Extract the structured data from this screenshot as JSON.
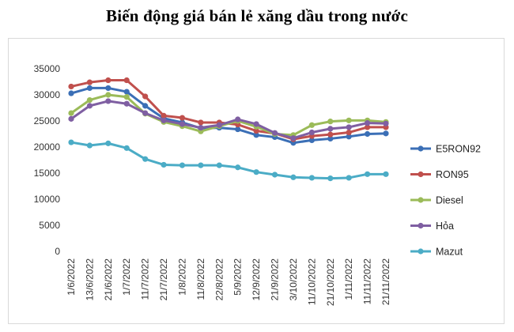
{
  "chart_data": {
    "type": "line",
    "title": "Biến động giá bán lẻ xăng dầu trong nước",
    "xlabel": "",
    "ylabel": "",
    "ylim": [
      0,
      35000
    ],
    "yticks": [
      0,
      5000,
      10000,
      15000,
      20000,
      25000,
      30000,
      35000
    ],
    "grid": false,
    "legend": "right",
    "categories": [
      "1/6/2022",
      "13/6/2022",
      "21/6/2022",
      "1/7/2022",
      "11/7/2022",
      "21/7/2022",
      "1/8/2022",
      "11/8/2022",
      "22/8/2022",
      "5/9/2022",
      "12/9/2022",
      "21/9/2022",
      "3/10/2022",
      "11/10/2022",
      "21/10/2022",
      "1/11/2022",
      "11/11/2022",
      "21/11/2022"
    ],
    "series": [
      {
        "name": "E5RON92",
        "color": "#3b6fb6",
        "values": [
          30300,
          31300,
          31300,
          30600,
          27900,
          25500,
          24700,
          23600,
          23700,
          23400,
          22300,
          21900,
          20800,
          21300,
          21600,
          22000,
          22500,
          22600
        ]
      },
      {
        "name": "RON95",
        "color": "#c0504d",
        "values": [
          31600,
          32400,
          32800,
          32800,
          29700,
          26000,
          25600,
          24700,
          24700,
          24300,
          23100,
          22600,
          21500,
          22100,
          22400,
          22800,
          23800,
          23800
        ]
      },
      {
        "name": "Diesel",
        "color": "#9bbb59",
        "values": [
          26500,
          29000,
          30000,
          29600,
          26400,
          24800,
          24000,
          23000,
          24000,
          25000,
          23900,
          22500,
          22300,
          24200,
          24900,
          25100,
          25100,
          24800
        ]
      },
      {
        "name": "Hỏa",
        "color": "#7f5fa2",
        "values": [
          25400,
          27900,
          28800,
          28300,
          26500,
          25100,
          24400,
          23700,
          24200,
          25300,
          24400,
          22700,
          21700,
          22800,
          23500,
          23800,
          24600,
          24500
        ]
      },
      {
        "name": "Mazut",
        "color": "#4bacc6",
        "values": [
          20900,
          20300,
          20700,
          19800,
          17700,
          16600,
          16500,
          16500,
          16500,
          16100,
          15200,
          14700,
          14200,
          14100,
          14000,
          14100,
          14800,
          14800
        ]
      }
    ]
  }
}
